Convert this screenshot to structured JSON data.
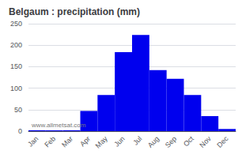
{
  "chart_data": {
    "type": "bar",
    "title": "Belgaum : precipitation (mm)",
    "categories": [
      "Jan",
      "Feb",
      "Mar",
      "Apr",
      "May",
      "Jun",
      "Jul",
      "Aug",
      "Sep",
      "Oct",
      "Nov",
      "Dec"
    ],
    "values": [
      2,
      2,
      2,
      47,
      84,
      184,
      224,
      142,
      122,
      84,
      35,
      5
    ],
    "color": "#0000ee",
    "ylim": [
      0,
      250
    ],
    "yticks": [
      0,
      50,
      100,
      150,
      200,
      250
    ],
    "grid": true,
    "annotations": [
      "www.allmetsat.com"
    ]
  }
}
